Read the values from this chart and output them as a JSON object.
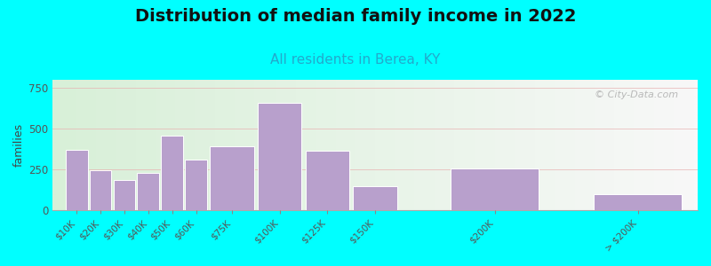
{
  "title": "Distribution of median family income in 2022",
  "subtitle": "All residents in Berea, KY",
  "ylabel": "families",
  "background_color": "#00FFFF",
  "bar_color": "#b8a0cc",
  "bar_edge_color": "#ffffff",
  "categories": [
    "$10K",
    "$20K",
    "$30K",
    "$40K",
    "$50K",
    "$60K",
    "$75K",
    "$100K",
    "$125K",
    "$150K",
    "$200K",
    "> $200K"
  ],
  "values": [
    370,
    245,
    185,
    230,
    455,
    310,
    390,
    660,
    365,
    150,
    255,
    100
  ],
  "positions": [
    0,
    1,
    2,
    3,
    4,
    5,
    6,
    8,
    10,
    12,
    16,
    22
  ],
  "widths": [
    1,
    1,
    1,
    1,
    1,
    1,
    2,
    2,
    2,
    2,
    4,
    4
  ],
  "ylim": [
    0,
    800
  ],
  "yticks": [
    0,
    250,
    500,
    750
  ],
  "watermark": "© City-Data.com",
  "title_fontsize": 14,
  "subtitle_fontsize": 11,
  "subtitle_color": "#22aacc",
  "tick_label_color": "#555555",
  "grid_color": "#e8b0b0",
  "ylabel_fontsize": 9
}
